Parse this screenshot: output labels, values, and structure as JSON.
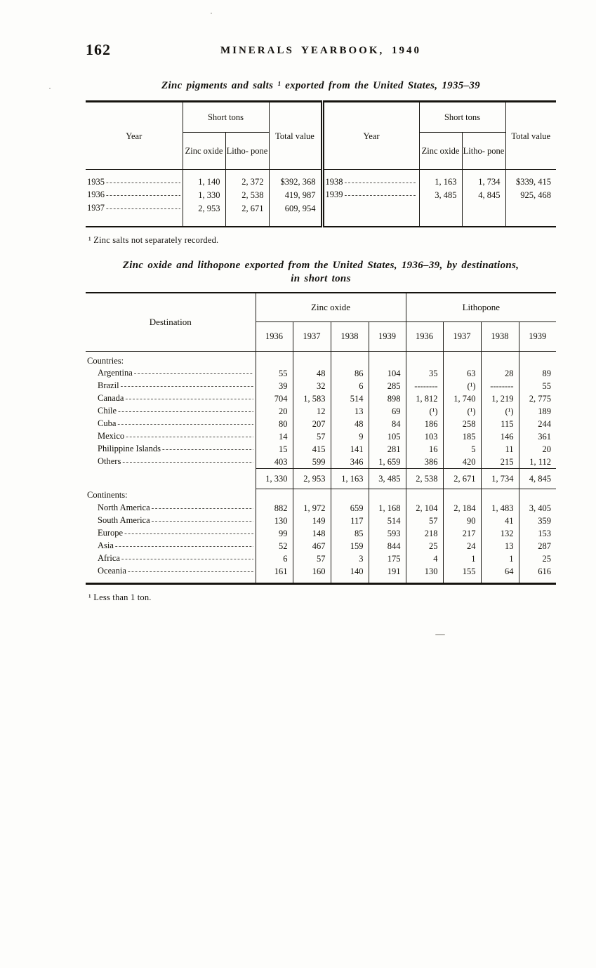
{
  "page": {
    "number": "162",
    "header": "MINERALS YEARBOOK, 1940"
  },
  "table1": {
    "title": "Zinc pigments and salts ¹ exported from the United States, 1935–39",
    "col_year": "Year",
    "col_short_tons": "Short tons",
    "col_zinc_oxide": "Zinc oxide",
    "col_lithopone": "Litho- pone",
    "col_total_value": "Total value",
    "rows_left": [
      {
        "year": "1935",
        "cells": [
          "1, 140",
          "2, 372",
          "$392, 368"
        ]
      },
      {
        "year": "1936",
        "cells": [
          "1, 330",
          "2, 538",
          "419, 987"
        ]
      },
      {
        "year": "1937",
        "cells": [
          "2, 953",
          "2, 671",
          "609, 954"
        ]
      }
    ],
    "rows_right": [
      {
        "year": "1938",
        "cells": [
          "1, 163",
          "1, 734",
          "$339, 415"
        ]
      },
      {
        "year": "1939",
        "cells": [
          "3, 485",
          "4, 845",
          "925, 468"
        ]
      }
    ],
    "footnote": "¹ Zinc salts not separately recorded."
  },
  "table2": {
    "title_line1": "Zinc oxide and lithopone exported from the United States, 1936–39, by destinations,",
    "title_line2": "in short tons",
    "col_destination": "Destination",
    "group_headers": [
      "Zinc oxide",
      "Lithopone"
    ],
    "years": [
      "1936",
      "1937",
      "1938",
      "1939"
    ],
    "sections": [
      {
        "label": "Countries:",
        "rows": [
          {
            "name": "Argentina",
            "values": [
              "55",
              "48",
              "86",
              "104",
              "35",
              "63",
              "28",
              "89"
            ]
          },
          {
            "name": "Brazil",
            "values": [
              "39",
              "32",
              "6",
              "285",
              "--------",
              "(¹)",
              "--------",
              "55"
            ]
          },
          {
            "name": "Canada",
            "values": [
              "704",
              "1, 583",
              "514",
              "898",
              "1, 812",
              "1, 740",
              "1, 219",
              "2, 775"
            ]
          },
          {
            "name": "Chile",
            "values": [
              "20",
              "12",
              "13",
              "69",
              "(¹)",
              "(¹)",
              "(¹)",
              "189"
            ]
          },
          {
            "name": "Cuba",
            "values": [
              "80",
              "207",
              "48",
              "84",
              "186",
              "258",
              "115",
              "244"
            ]
          },
          {
            "name": "Mexico",
            "values": [
              "14",
              "57",
              "9",
              "105",
              "103",
              "185",
              "146",
              "361"
            ]
          },
          {
            "name": "Philippine Islands",
            "values": [
              "15",
              "415",
              "141",
              "281",
              "16",
              "5",
              "11",
              "20"
            ]
          },
          {
            "name": "Others",
            "values": [
              "403",
              "599",
              "346",
              "1, 659",
              "386",
              "420",
              "215",
              "1, 112"
            ]
          }
        ],
        "total_values": [
          "1, 330",
          "2, 953",
          "1, 163",
          "3, 485",
          "2, 538",
          "2, 671",
          "1, 734",
          "4, 845"
        ]
      },
      {
        "label": "Continents:",
        "rows": [
          {
            "name": "North America",
            "values": [
              "882",
              "1, 972",
              "659",
              "1, 168",
              "2, 104",
              "2, 184",
              "1, 483",
              "3, 405"
            ]
          },
          {
            "name": "South America",
            "values": [
              "130",
              "149",
              "117",
              "514",
              "57",
              "90",
              "41",
              "359"
            ]
          },
          {
            "name": "Europe",
            "values": [
              "99",
              "148",
              "85",
              "593",
              "218",
              "217",
              "132",
              "153"
            ]
          },
          {
            "name": "Asia",
            "values": [
              "52",
              "467",
              "159",
              "844",
              "25",
              "24",
              "13",
              "287"
            ]
          },
          {
            "name": "Africa",
            "values": [
              "6",
              "57",
              "3",
              "175",
              "4",
              "1",
              "1",
              "25"
            ]
          },
          {
            "name": "Oceania",
            "values": [
              "161",
              "160",
              "140",
              "191",
              "130",
              "155",
              "64",
              "616"
            ]
          }
        ]
      }
    ],
    "footnote": "¹ Less than 1 ton."
  }
}
